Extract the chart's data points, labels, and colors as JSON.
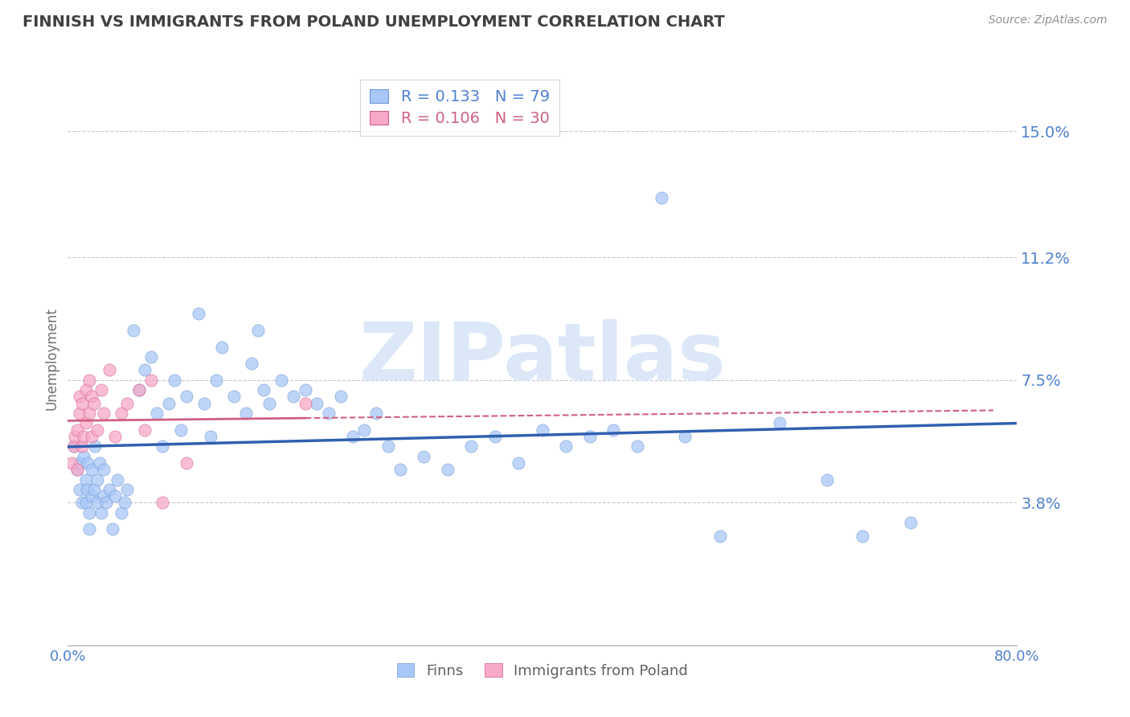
{
  "title": "FINNISH VS IMMIGRANTS FROM POLAND UNEMPLOYMENT CORRELATION CHART",
  "source": "Source: ZipAtlas.com",
  "ylabel": "Unemployment",
  "xlim": [
    0.0,
    0.8
  ],
  "ylim": [
    -0.005,
    0.168
  ],
  "yticks": [
    0.038,
    0.075,
    0.112,
    0.15
  ],
  "ytick_labels": [
    "3.8%",
    "7.5%",
    "11.2%",
    "15.0%"
  ],
  "xticks": [
    0.0,
    0.8
  ],
  "xtick_labels": [
    "0.0%",
    "80.0%"
  ],
  "legend_R_finns": "0.133",
  "legend_N_finns": "79",
  "legend_R_poland": "0.106",
  "legend_N_poland": "30",
  "finns_color": "#a8c8f8",
  "poland_color": "#f8a8c8",
  "finns_edge_color": "#7098d0",
  "poland_edge_color": "#d06090",
  "trendline_finns_color": "#3060b0",
  "trendline_poland_color": "#d06080",
  "background_color": "#ffffff",
  "grid_color": "#c8c8d8",
  "axis_label_color": "#5080d0",
  "title_color": "#404040",
  "watermark": "ZIPatlas",
  "watermark_color": "#dce8f8",
  "finns_x": [
    0.005,
    0.008,
    0.01,
    0.01,
    0.012,
    0.013,
    0.015,
    0.015,
    0.016,
    0.017,
    0.018,
    0.018,
    0.02,
    0.02,
    0.022,
    0.023,
    0.025,
    0.025,
    0.027,
    0.028,
    0.03,
    0.03,
    0.032,
    0.035,
    0.038,
    0.04,
    0.042,
    0.045,
    0.048,
    0.05,
    0.055,
    0.06,
    0.065,
    0.07,
    0.075,
    0.08,
    0.085,
    0.09,
    0.095,
    0.1,
    0.11,
    0.115,
    0.12,
    0.125,
    0.13,
    0.14,
    0.15,
    0.155,
    0.16,
    0.165,
    0.17,
    0.18,
    0.19,
    0.2,
    0.21,
    0.22,
    0.23,
    0.24,
    0.25,
    0.26,
    0.27,
    0.28,
    0.3,
    0.32,
    0.34,
    0.36,
    0.38,
    0.4,
    0.42,
    0.44,
    0.46,
    0.48,
    0.5,
    0.52,
    0.55,
    0.6,
    0.64,
    0.67,
    0.71
  ],
  "finns_y": [
    0.055,
    0.048,
    0.042,
    0.05,
    0.038,
    0.052,
    0.045,
    0.038,
    0.042,
    0.05,
    0.035,
    0.03,
    0.04,
    0.048,
    0.042,
    0.055,
    0.038,
    0.045,
    0.05,
    0.035,
    0.04,
    0.048,
    0.038,
    0.042,
    0.03,
    0.04,
    0.045,
    0.035,
    0.038,
    0.042,
    0.09,
    0.072,
    0.078,
    0.082,
    0.065,
    0.055,
    0.068,
    0.075,
    0.06,
    0.07,
    0.095,
    0.068,
    0.058,
    0.075,
    0.085,
    0.07,
    0.065,
    0.08,
    0.09,
    0.072,
    0.068,
    0.075,
    0.07,
    0.072,
    0.068,
    0.065,
    0.07,
    0.058,
    0.06,
    0.065,
    0.055,
    0.048,
    0.052,
    0.048,
    0.055,
    0.058,
    0.05,
    0.06,
    0.055,
    0.058,
    0.06,
    0.055,
    0.13,
    0.058,
    0.028,
    0.062,
    0.045,
    0.028,
    0.032
  ],
  "poland_x": [
    0.003,
    0.005,
    0.006,
    0.008,
    0.008,
    0.01,
    0.01,
    0.012,
    0.012,
    0.013,
    0.015,
    0.015,
    0.018,
    0.018,
    0.02,
    0.02,
    0.022,
    0.025,
    0.028,
    0.03,
    0.035,
    0.04,
    0.045,
    0.05,
    0.06,
    0.065,
    0.07,
    0.08,
    0.1,
    0.2
  ],
  "poland_y": [
    0.05,
    0.055,
    0.058,
    0.048,
    0.06,
    0.065,
    0.07,
    0.055,
    0.068,
    0.058,
    0.062,
    0.072,
    0.065,
    0.075,
    0.058,
    0.07,
    0.068,
    0.06,
    0.072,
    0.065,
    0.078,
    0.058,
    0.065,
    0.068,
    0.072,
    0.06,
    0.075,
    0.038,
    0.05,
    0.068
  ]
}
